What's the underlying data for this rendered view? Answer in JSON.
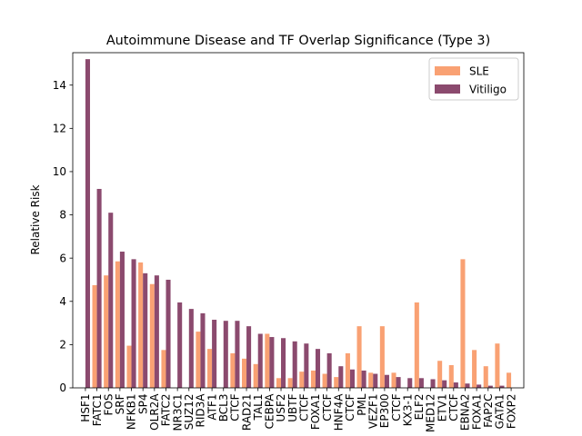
{
  "colors": {
    "SLE": "#f9a173",
    "Vitiligo": "#8b4a6e",
    "axis": "#000000",
    "background": "#ffffff",
    "legend_border": "#cccccc"
  },
  "chart_data": {
    "type": "bar",
    "title": "Autoimmune Disease and TF Overlap Significance (Type 3)",
    "xlabel": "",
    "ylabel": "Relative Risk",
    "ylim": [
      0,
      15.5
    ],
    "yticks": [
      0,
      2,
      4,
      6,
      8,
      10,
      12,
      14
    ],
    "grid": false,
    "legend_position": "top-right",
    "categories": [
      "HSF1",
      "FATC1",
      "FOS",
      "SRF",
      "NFKB1",
      "SP4",
      "OLR2A",
      "FATC2",
      "NR3C1",
      "SUZ12",
      "RID3A",
      "ATF1",
      "BCL3",
      "CTCF",
      "RAD21",
      "TAL1",
      "CEBPA",
      "USF2",
      "UBTF",
      "CTCF",
      "FOXA1",
      "CTCF",
      "HNF4A",
      "CTCF",
      "PML",
      "VEZF1",
      "EP300",
      "CTCF",
      "KX3-1",
      "ELF2",
      "MED12",
      "ETV1",
      "CTCF",
      "EBNA2",
      "FOXA1",
      "FAP2C",
      "GATA1",
      "FOXP2"
    ],
    "series": [
      {
        "name": "SLE",
        "values": [
          0,
          4.75,
          5.2,
          5.85,
          1.95,
          5.8,
          4.8,
          1.75,
          0,
          0,
          2.6,
          1.8,
          0,
          1.6,
          1.35,
          1.1,
          2.5,
          0.45,
          0.45,
          0.75,
          0.8,
          0.65,
          0.5,
          1.6,
          2.85,
          0.7,
          2.85,
          0.7,
          0,
          3.95,
          0,
          1.25,
          1.05,
          5.95,
          1.75,
          1.0,
          2.05,
          0.7
        ]
      },
      {
        "name": "Vitiligo",
        "values": [
          15.2,
          9.2,
          8.1,
          6.3,
          5.95,
          5.3,
          5.2,
          5.0,
          3.95,
          3.65,
          3.45,
          3.15,
          3.1,
          3.1,
          2.85,
          2.5,
          2.35,
          2.3,
          2.15,
          2.05,
          1.8,
          1.6,
          1.0,
          0.85,
          0.8,
          0.65,
          0.6,
          0.5,
          0.45,
          0.45,
          0.4,
          0.35,
          0.25,
          0.2,
          0.15,
          0.1,
          0.1,
          0
        ]
      }
    ]
  }
}
